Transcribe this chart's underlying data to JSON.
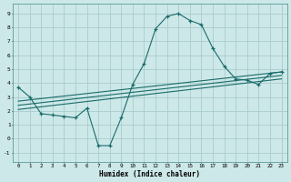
{
  "title": "",
  "xlabel": "Humidex (Indice chaleur)",
  "ylabel": "",
  "bg_color": "#cde8e8",
  "grid_color": "#aacccc",
  "line_color": "#1a6b6b",
  "xlim": [
    -0.5,
    23.5
  ],
  "ylim": [
    -1.7,
    9.7
  ],
  "xticks": [
    0,
    1,
    2,
    3,
    4,
    5,
    6,
    7,
    8,
    9,
    10,
    11,
    12,
    13,
    14,
    15,
    16,
    17,
    18,
    19,
    20,
    21,
    22,
    23
  ],
  "yticks": [
    -1,
    0,
    1,
    2,
    3,
    4,
    5,
    6,
    7,
    8,
    9
  ],
  "main_line": {
    "x": [
      0,
      1,
      2,
      3,
      4,
      5,
      6,
      7,
      8,
      9,
      10,
      11,
      12,
      13,
      14,
      15,
      16,
      17,
      18,
      19,
      20,
      21,
      22,
      23
    ],
    "y": [
      3.7,
      3.0,
      1.8,
      1.7,
      1.6,
      1.5,
      2.2,
      -0.5,
      -0.5,
      1.5,
      3.9,
      5.4,
      7.9,
      8.8,
      9.0,
      8.5,
      8.2,
      6.5,
      5.2,
      4.3,
      4.2,
      3.9,
      4.7,
      4.8
    ]
  },
  "regression_lines": [
    {
      "x": [
        0,
        23
      ],
      "y": [
        2.7,
        4.8
      ]
    },
    {
      "x": [
        0,
        23
      ],
      "y": [
        2.4,
        4.55
      ]
    },
    {
      "x": [
        0,
        23
      ],
      "y": [
        2.1,
        4.3
      ]
    }
  ]
}
